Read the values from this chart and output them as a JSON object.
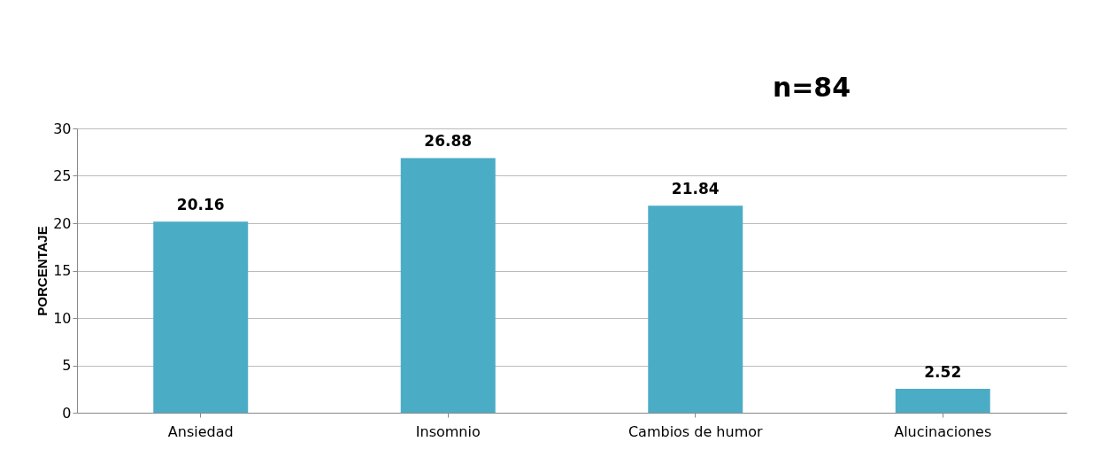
{
  "chart_data": {
    "type": "bar",
    "ylabel": "PORCENTAJE",
    "categories": [
      "Ansiedad",
      "Insomnio",
      "Cambios de humor",
      "Alucinaciones"
    ],
    "values": [
      20.16,
      26.88,
      21.84,
      2.52
    ],
    "color": "#4bacc6",
    "ylim": [
      0,
      30
    ],
    "yticks": [
      0,
      5,
      10,
      15,
      20,
      25,
      30
    ],
    "grid": "y",
    "data_labels": true,
    "annotations": [
      "n=84"
    ]
  }
}
